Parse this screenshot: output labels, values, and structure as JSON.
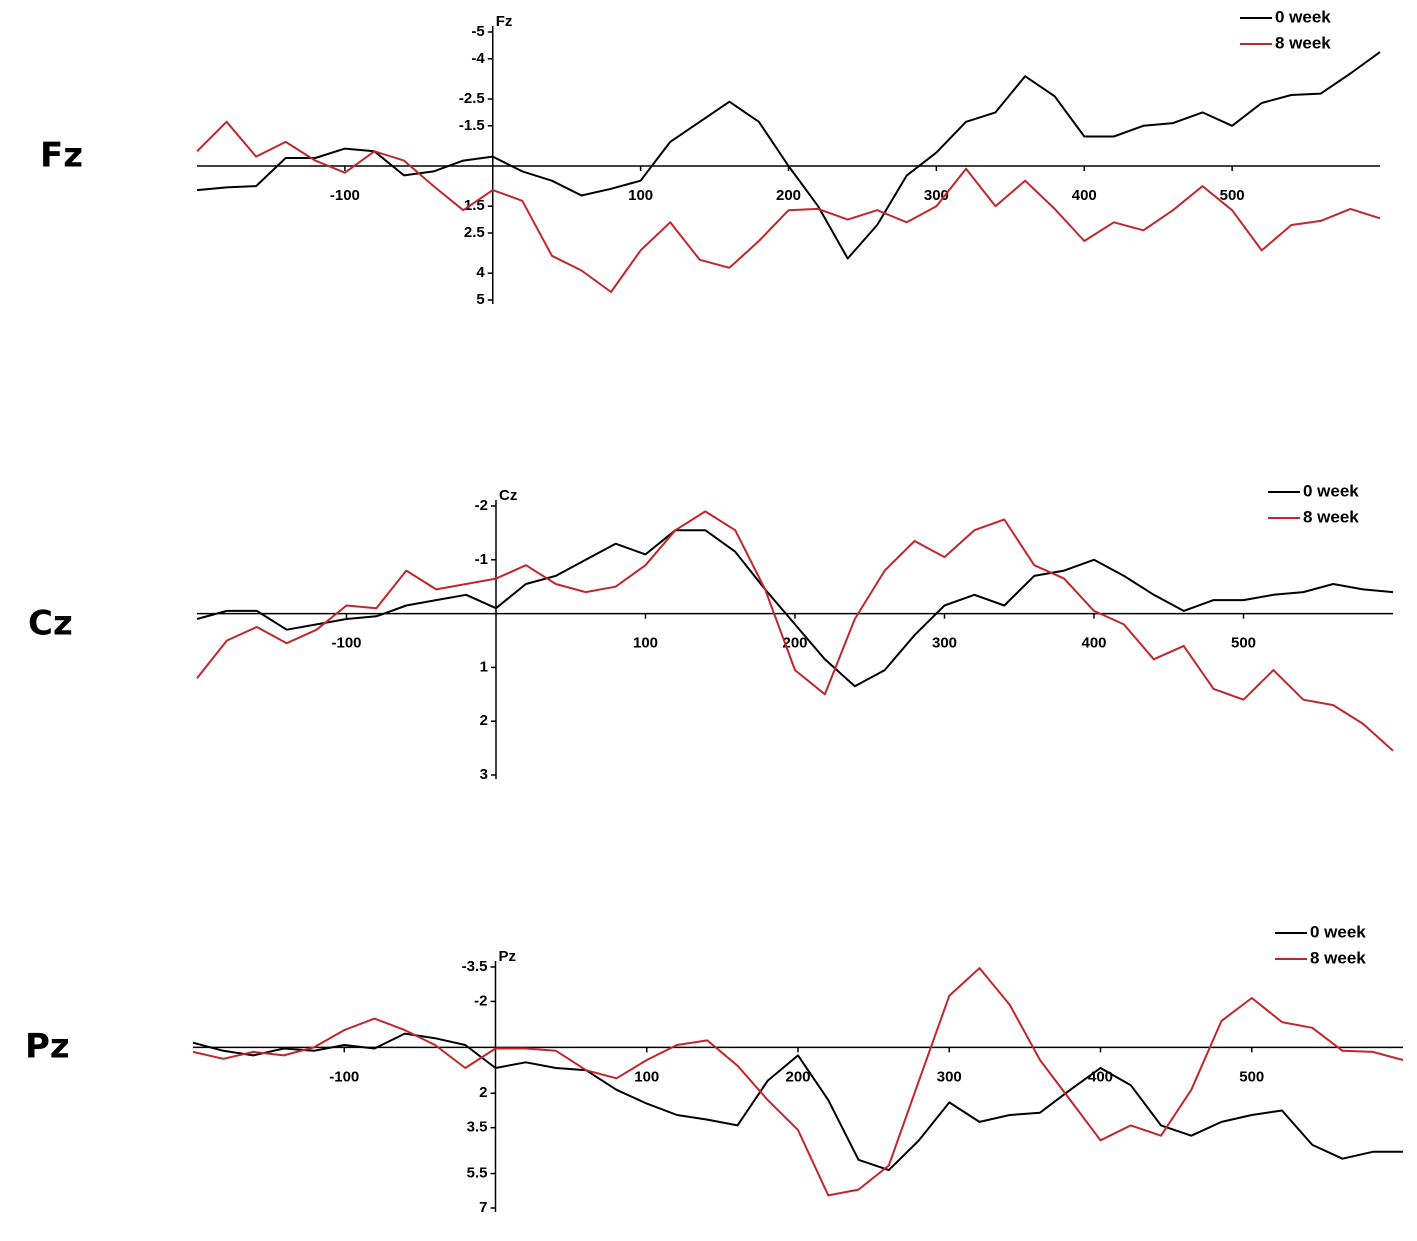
{
  "chart_data": [
    {
      "type": "line",
      "channel_label": "Fz",
      "y_label": "Fz",
      "y_inverted": true,
      "xlim": [
        -200,
        600
      ],
      "xticks": [
        -100,
        100,
        200,
        300,
        400,
        500
      ],
      "ylim": [
        -5,
        5
      ],
      "yticks": [
        -5,
        -4,
        -2.5,
        -1.5,
        1.5,
        2.5,
        4,
        5
      ],
      "x": [
        -200,
        -180,
        -160,
        -140,
        -120,
        -100,
        -80,
        -60,
        -40,
        -20,
        0,
        20,
        40,
        60,
        80,
        100,
        120,
        140,
        160,
        180,
        200,
        220,
        240,
        260,
        280,
        300,
        320,
        340,
        360,
        380,
        400,
        420,
        440,
        460,
        480,
        500,
        520,
        540,
        560,
        580,
        600
      ],
      "series": [
        {
          "name": "0 week",
          "color": "#000000",
          "values": [
            0.9,
            0.8,
            0.75,
            -0.3,
            -0.3,
            -0.65,
            -0.55,
            0.35,
            0.2,
            -0.2,
            -0.35,
            0.2,
            0.55,
            1.1,
            0.85,
            0.55,
            -0.9,
            -1.65,
            -2.4,
            -1.65,
            0,
            1.5,
            3.45,
            2.2,
            0.35,
            -0.5,
            -1.65,
            -2.0,
            -3.35,
            -2.6,
            -1.1,
            -1.1,
            -1.5,
            -1.6,
            -2.0,
            -1.5,
            -2.35,
            -2.65,
            -2.7,
            -3.45,
            -4.25
          ]
        },
        {
          "name": "8 week",
          "color": "#c0272d",
          "values": [
            -0.55,
            -1.65,
            -0.35,
            -0.9,
            -0.2,
            0.25,
            -0.55,
            -0.2,
            0.75,
            1.65,
            0.9,
            1.3,
            3.35,
            3.9,
            4.7,
            3.15,
            2.1,
            3.5,
            3.8,
            2.8,
            1.65,
            1.6,
            2.0,
            1.65,
            2.1,
            1.5,
            0.1,
            1.5,
            0.55,
            1.6,
            2.8,
            2.1,
            2.4,
            1.65,
            0.75,
            1.65,
            3.15,
            2.2,
            2.05,
            1.6,
            1.95
          ]
        }
      ]
    },
    {
      "type": "line",
      "channel_label": "Cz",
      "y_label": "Cz",
      "y_inverted": true,
      "xlim": [
        -200,
        600
      ],
      "xticks": [
        -100,
        100,
        200,
        300,
        400,
        500
      ],
      "ylim": [
        -2,
        3
      ],
      "yticks": [
        -2,
        -1,
        1,
        2,
        3
      ],
      "x": [
        -200,
        -180,
        -160,
        -140,
        -120,
        -100,
        -80,
        -60,
        -40,
        -20,
        0,
        20,
        40,
        60,
        80,
        100,
        120,
        140,
        160,
        180,
        200,
        220,
        240,
        260,
        280,
        300,
        320,
        340,
        360,
        380,
        400,
        420,
        440,
        460,
        480,
        500,
        520,
        540,
        560,
        580,
        600
      ],
      "series": [
        {
          "name": "0 week",
          "color": "#000000",
          "values": [
            0.1,
            -0.05,
            -0.05,
            0.3,
            0.2,
            0.1,
            0.05,
            -0.15,
            -0.25,
            -0.35,
            -0.1,
            -0.55,
            -0.7,
            -1.0,
            -1.3,
            -1.1,
            -1.55,
            -1.55,
            -1.15,
            -0.45,
            0.2,
            0.85,
            1.35,
            1.05,
            0.4,
            -0.15,
            -0.35,
            -0.15,
            -0.7,
            -0.8,
            -1.0,
            -0.7,
            -0.35,
            -0.05,
            -0.25,
            -0.25,
            -0.35,
            -0.4,
            -0.55,
            -0.45,
            -0.4
          ]
        },
        {
          "name": "8 week",
          "color": "#c0272d",
          "values": [
            1.2,
            0.5,
            0.25,
            0.55,
            0.3,
            -0.15,
            -0.1,
            -0.8,
            -0.45,
            -0.55,
            -0.65,
            -0.9,
            -0.55,
            -0.4,
            -0.5,
            -0.9,
            -1.55,
            -1.9,
            -1.55,
            -0.45,
            1.05,
            1.5,
            0.1,
            -0.8,
            -1.35,
            -1.05,
            -1.55,
            -1.75,
            -0.9,
            -0.65,
            -0.05,
            0.2,
            0.85,
            0.6,
            1.4,
            1.6,
            1.05,
            1.6,
            1.7,
            2.05,
            2.55
          ]
        }
      ]
    },
    {
      "type": "line",
      "channel_label": "Pz",
      "y_label": "Pz",
      "y_inverted": true,
      "xlim": [
        -200,
        600
      ],
      "xticks": [
        -100,
        100,
        200,
        300,
        400,
        500
      ],
      "ylim": [
        -3.5,
        7
      ],
      "yticks": [
        -3.5,
        -2,
        2,
        3.5,
        5.5,
        7
      ],
      "x": [
        -200,
        -180,
        -160,
        -140,
        -120,
        -100,
        -80,
        -60,
        -40,
        -20,
        0,
        20,
        40,
        60,
        80,
        100,
        120,
        140,
        160,
        180,
        200,
        220,
        240,
        260,
        280,
        300,
        320,
        340,
        360,
        380,
        400,
        420,
        440,
        460,
        480,
        500,
        520,
        540,
        560,
        580,
        600
      ],
      "series": [
        {
          "name": "0 week",
          "color": "#000000",
          "values": [
            -0.2,
            0.15,
            0.35,
            0.05,
            0.15,
            -0.1,
            0.05,
            -0.6,
            -0.4,
            -0.1,
            0.9,
            0.65,
            0.9,
            1.0,
            1.85,
            2.45,
            2.95,
            3.15,
            3.4,
            1.45,
            0.35,
            2.3,
            4.9,
            5.35,
            4.05,
            2.4,
            3.25,
            2.95,
            2.85,
            1.85,
            0.9,
            1.65,
            3.4,
            3.85,
            3.25,
            2.95,
            2.75,
            4.25,
            4.85,
            4.55,
            4.55
          ]
        },
        {
          "name": "8 week",
          "color": "#c0272d",
          "values": [
            0.2,
            0.5,
            0.2,
            0.35,
            0,
            -0.75,
            -1.25,
            -0.75,
            -0.1,
            0.9,
            0.05,
            0.05,
            0.15,
            1.0,
            1.35,
            0.55,
            -0.1,
            -0.3,
            0.8,
            2.3,
            3.6,
            6.45,
            6.2,
            5.15,
            1.45,
            -2.25,
            -3.45,
            -1.85,
            0.55,
            2.3,
            4.05,
            3.4,
            3.85,
            1.85,
            -1.15,
            -2.15,
            -1.1,
            -0.85,
            0.15,
            0.2,
            0.55
          ]
        }
      ]
    }
  ]
}
